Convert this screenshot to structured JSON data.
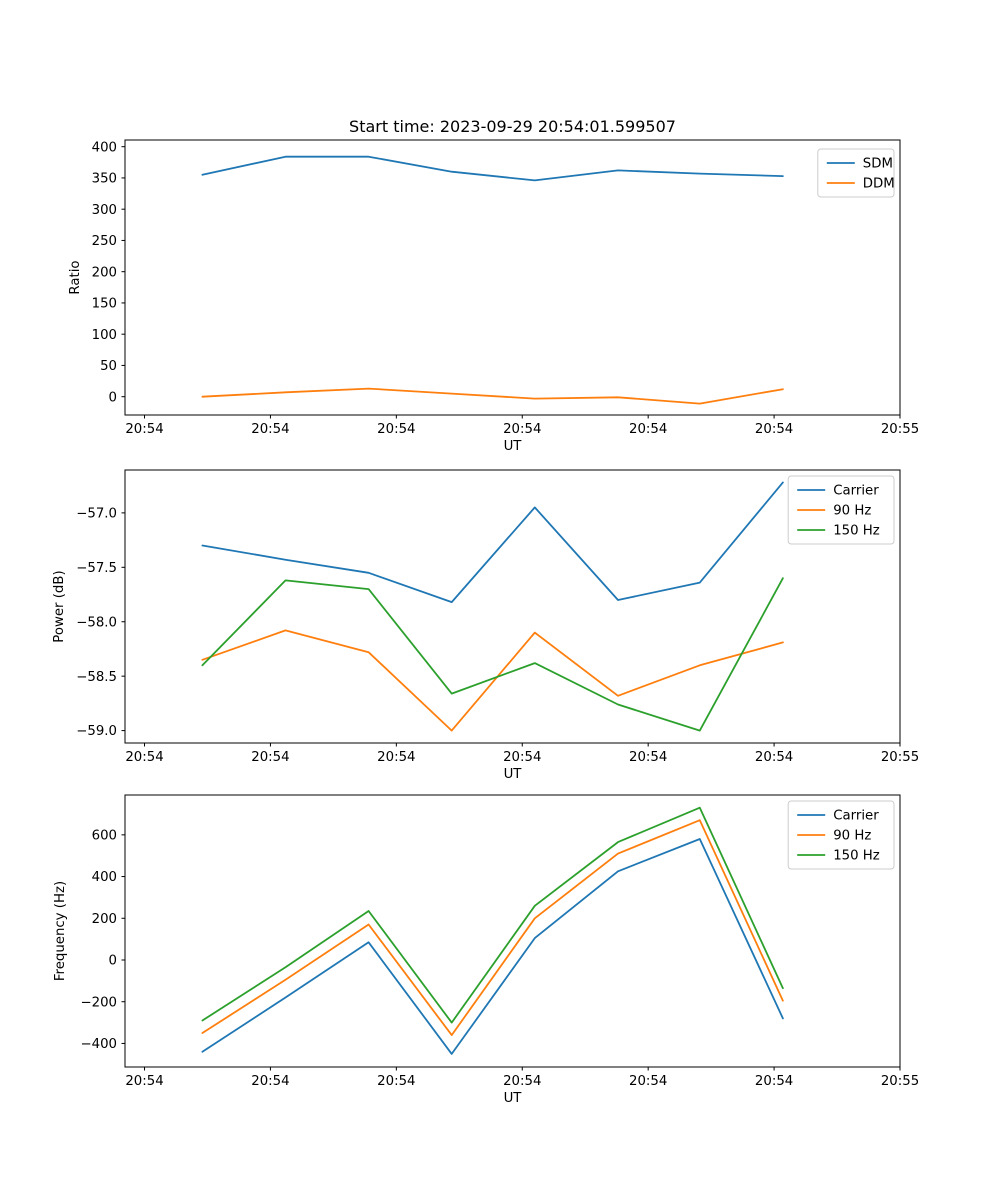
{
  "figure": {
    "title": "Start time: 2023-09-29 20:54:01.599507",
    "background_color": "#ffffff",
    "spine_color": "#000000",
    "legend_border_color": "#cccccc"
  },
  "x_axis": {
    "xlabel": "UT",
    "xlim_seconds": [
      -1.55,
      60
    ],
    "tick_seconds": [
      0,
      10,
      20,
      30,
      40,
      50,
      60
    ],
    "tick_labels": [
      "20:54",
      "20:54",
      "20:54",
      "20:54",
      "20:54",
      "20:54",
      "20:55"
    ]
  },
  "chart_data": [
    {
      "type": "line",
      "title": "Start time: 2023-09-29 20:54:01.599507",
      "xlabel": "UT",
      "ylabel": "Ratio",
      "x_seconds": [
        4.6,
        11.2,
        17.8,
        24.4,
        31.0,
        37.6,
        44.1,
        50.7
      ],
      "y_ticks": [
        0,
        50,
        100,
        150,
        200,
        250,
        300,
        350,
        400
      ],
      "y_tick_decimals": 0,
      "ylim": [
        -29.3,
        410.7
      ],
      "grid": false,
      "legend_position": "upper right",
      "series": [
        {
          "name": "SDM",
          "color": "#1f77b4",
          "values": [
            355,
            384,
            384,
            360,
            346,
            362,
            357,
            353
          ]
        },
        {
          "name": "DDM",
          "color": "#ff7f0e",
          "values": [
            0,
            7,
            13,
            5,
            -3,
            -1,
            -11,
            12
          ]
        }
      ]
    },
    {
      "type": "line",
      "title": "",
      "xlabel": "UT",
      "ylabel": "Power (dB)",
      "x_seconds": [
        4.6,
        11.2,
        17.8,
        24.4,
        31.0,
        37.6,
        44.1,
        50.7
      ],
      "y_ticks": [
        -59.0,
        -58.5,
        -58.0,
        -57.5,
        -57.0
      ],
      "y_tick_decimals": 1,
      "ylim": [
        -59.114,
        -56.606
      ],
      "grid": false,
      "legend_position": "upper right",
      "series": [
        {
          "name": "Carrier",
          "color": "#1f77b4",
          "values": [
            -57.3,
            -57.43,
            -57.55,
            -57.82,
            -56.95,
            -57.8,
            -57.64,
            -56.72
          ]
        },
        {
          "name": "90 Hz",
          "color": "#ff7f0e",
          "values": [
            -58.35,
            -58.08,
            -58.28,
            -59.0,
            -58.1,
            -58.68,
            -58.4,
            -58.19
          ]
        },
        {
          "name": "150 Hz",
          "color": "#2ca02c",
          "values": [
            -58.4,
            -57.62,
            -57.7,
            -58.66,
            -58.38,
            -58.76,
            -59.0,
            -57.6
          ]
        }
      ]
    },
    {
      "type": "line",
      "title": "",
      "xlabel": "UT",
      "ylabel": "Frequency (Hz)",
      "x_seconds": [
        4.6,
        11.2,
        17.8,
        24.4,
        31.0,
        37.6,
        44.1,
        50.7
      ],
      "y_ticks": [
        -400,
        -200,
        0,
        200,
        400,
        600
      ],
      "y_tick_decimals": 0,
      "ylim": [
        -513,
        791
      ],
      "grid": false,
      "legend_position": "upper right",
      "series": [
        {
          "name": "Carrier",
          "color": "#1f77b4",
          "values": [
            -440,
            -180,
            85,
            -450,
            105,
            425,
            580,
            -280
          ]
        },
        {
          "name": "90 Hz",
          "color": "#ff7f0e",
          "values": [
            -350,
            -95,
            170,
            -360,
            200,
            510,
            670,
            -195
          ]
        },
        {
          "name": "150 Hz",
          "color": "#2ca02c",
          "values": [
            -290,
            -35,
            235,
            -300,
            260,
            565,
            730,
            -135
          ]
        }
      ]
    }
  ]
}
